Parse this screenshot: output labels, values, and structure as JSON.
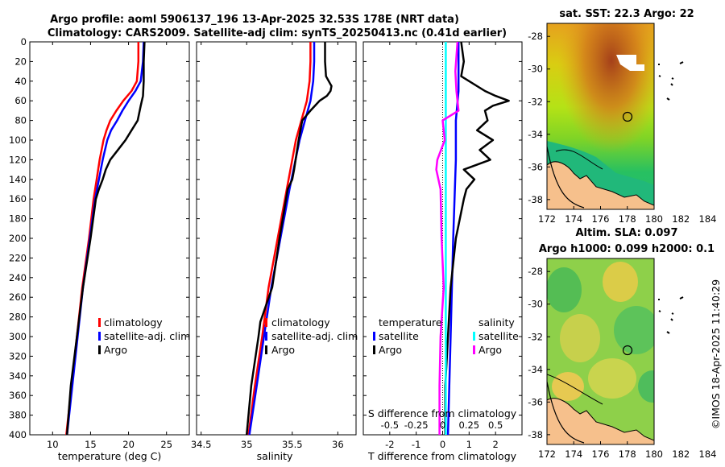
{
  "header": {
    "title_line1": "Argo profile: aoml 5906137_196 13-Apr-2025 32.53S 178E (NRT data)",
    "title_line2": "Climatology: CARS2009. Satellite-adj clim: synTS_20250413.nc (0.41d earlier)"
  },
  "colors": {
    "climatology": "#ff0000",
    "satellite": "#0000ff",
    "argo": "#000000",
    "sat_salinity": "#00ffff",
    "argo_salinity": "#ff00ff"
  },
  "chart_data": [
    {
      "type": "line",
      "id": "temperature",
      "xlabel": "temperature (deg C)",
      "ylabel": "depth",
      "xlim": [
        7,
        28
      ],
      "ylim": [
        0,
        400
      ],
      "xticks": [
        10,
        15,
        20,
        25
      ],
      "yticks": [
        0,
        20,
        40,
        60,
        80,
        100,
        120,
        140,
        160,
        180,
        200,
        220,
        240,
        260,
        280,
        300,
        320,
        340,
        360,
        380,
        400
      ],
      "legend": [
        "climatology",
        "satellite-adj. clim",
        "Argo"
      ],
      "series": [
        {
          "name": "climatology",
          "color": "#ff0000",
          "depth": [
            0,
            20,
            40,
            50,
            60,
            70,
            80,
            90,
            100,
            120,
            140,
            160,
            200,
            250,
            300,
            350,
            400
          ],
          "values": [
            21.3,
            21.3,
            21.1,
            20.4,
            19.3,
            18.4,
            17.6,
            17.1,
            16.7,
            16.2,
            15.8,
            15.4,
            14.8,
            13.9,
            13.2,
            12.5,
            11.8
          ]
        },
        {
          "name": "satellite-adj. clim",
          "color": "#0000ff",
          "depth": [
            0,
            20,
            40,
            50,
            60,
            70,
            80,
            90,
            100,
            120,
            140,
            160,
            200,
            250,
            300,
            350,
            400
          ],
          "values": [
            22.0,
            21.9,
            21.6,
            20.9,
            20.0,
            19.2,
            18.5,
            17.7,
            17.2,
            16.6,
            16.1,
            15.6,
            14.9,
            14.0,
            13.3,
            12.6,
            11.9
          ]
        },
        {
          "name": "Argo",
          "color": "#000000",
          "depth": [
            0,
            20,
            40,
            55,
            65,
            80,
            90,
            100,
            110,
            120,
            130,
            140,
            150,
            160,
            200,
            250,
            300,
            350,
            400
          ],
          "values": [
            22.1,
            22.0,
            22.0,
            21.9,
            21.6,
            21.2,
            20.4,
            19.6,
            18.6,
            17.6,
            17.0,
            16.6,
            16.1,
            15.7,
            15.0,
            14.0,
            13.2,
            12.4,
            11.9
          ]
        }
      ]
    },
    {
      "type": "line",
      "id": "salinity",
      "xlabel": "salinity",
      "ylabel": "depth",
      "xlim": [
        34.45,
        36.2
      ],
      "ylim": [
        0,
        400
      ],
      "xticks": [
        "34.5",
        "35",
        "35.5",
        "36"
      ],
      "legend": [
        "climatology",
        "satellite-adj. clim",
        "Argo"
      ],
      "series": [
        {
          "name": "climatology",
          "color": "#ff0000",
          "depth": [
            0,
            20,
            40,
            60,
            80,
            100,
            150,
            200,
            250,
            300,
            350,
            400
          ],
          "values": [
            35.7,
            35.7,
            35.69,
            35.66,
            35.6,
            35.54,
            35.44,
            35.34,
            35.24,
            35.17,
            35.09,
            35.02
          ]
        },
        {
          "name": "satellite-adj. clim",
          "color": "#0000ff",
          "depth": [
            0,
            20,
            40,
            60,
            80,
            100,
            150,
            200,
            250,
            300,
            350,
            400
          ],
          "values": [
            35.74,
            35.74,
            35.73,
            35.7,
            35.64,
            35.58,
            35.47,
            35.37,
            35.27,
            35.19,
            35.11,
            35.03
          ]
        },
        {
          "name": "Argo",
          "color": "#000000",
          "depth": [
            0,
            20,
            35,
            40,
            45,
            50,
            55,
            60,
            70,
            80,
            100,
            130,
            140,
            150,
            200,
            250,
            285,
            300,
            350,
            400
          ],
          "values": [
            35.86,
            35.86,
            35.87,
            35.9,
            35.93,
            35.92,
            35.88,
            35.8,
            35.7,
            35.61,
            35.57,
            35.52,
            35.5,
            35.45,
            35.36,
            35.28,
            35.15,
            35.13,
            35.05,
            35.0
          ]
        }
      ]
    },
    {
      "type": "line",
      "id": "differences",
      "xlabel": "T difference from climatology",
      "x2label": "S difference from climatology",
      "xlim": [
        -3,
        3
      ],
      "ylim": [
        0,
        400
      ],
      "xticks": [
        "-2",
        "-1",
        "0",
        "1",
        "2"
      ],
      "x2ticks": [
        "-0.5",
        "-0.25",
        "0",
        "0.25",
        "0.5"
      ],
      "legend_left_title": "temperature",
      "legend_left": [
        "satellite",
        "Argo"
      ],
      "legend_right_title": "salinity",
      "legend_right": [
        "satellite",
        "Argo"
      ],
      "series": [
        {
          "name": "T satellite",
          "color": "#0000ff",
          "depth": [
            0,
            50,
            80,
            120,
            200,
            300,
            400
          ],
          "values": [
            0.6,
            0.6,
            0.5,
            0.5,
            0.4,
            0.3,
            0.2
          ]
        },
        {
          "name": "T Argo",
          "color": "#000000",
          "depth": [
            0,
            20,
            35,
            50,
            55,
            60,
            65,
            70,
            80,
            90,
            100,
            110,
            120,
            130,
            140,
            150,
            160,
            200,
            250,
            300,
            350,
            400
          ],
          "values": [
            0.7,
            0.8,
            0.7,
            1.6,
            2.0,
            2.5,
            1.9,
            1.6,
            1.7,
            1.3,
            1.9,
            1.4,
            1.8,
            0.8,
            1.2,
            0.9,
            0.8,
            0.5,
            0.3,
            0.2,
            0.1,
            0.1
          ]
        },
        {
          "name": "S satellite",
          "color": "#00ffff",
          "depth": [
            0,
            80,
            150,
            250,
            400
          ],
          "values": [
            0.03,
            0.03,
            0.03,
            0.03,
            0.03
          ]
        },
        {
          "name": "S Argo",
          "color": "#ff00ff",
          "depth": [
            0,
            30,
            50,
            70,
            80,
            100,
            120,
            130,
            150,
            200,
            250,
            300,
            350,
            400
          ],
          "values": [
            0.14,
            0.12,
            0.13,
            0.15,
            0.0,
            0.02,
            -0.05,
            -0.06,
            -0.02,
            -0.01,
            0.01,
            -0.02,
            -0.03,
            -0.03
          ]
        }
      ]
    }
  ],
  "sst_map": {
    "title": "sat. SST: 22.3 Argo: 22",
    "xticks": [
      "172",
      "174",
      "176",
      "178",
      "180",
      "182",
      "184"
    ],
    "yticks": [
      "-28",
      "-30",
      "-32",
      "-34",
      "-36",
      "-38"
    ],
    "marker": "argo-position"
  },
  "sla_map": {
    "title_line1": "Altim. SLA: 0.097",
    "title_line2": "Argo h1000: 0.099 h2000: 0.1",
    "xticks": [
      "172",
      "174",
      "176",
      "178",
      "180",
      "182",
      "184"
    ],
    "yticks": [
      "-28",
      "-30",
      "-32",
      "-34",
      "-36",
      "-38"
    ],
    "marker": "argo-position"
  },
  "watermark": "©IMOS 18-Apr-2025 11:40:29"
}
